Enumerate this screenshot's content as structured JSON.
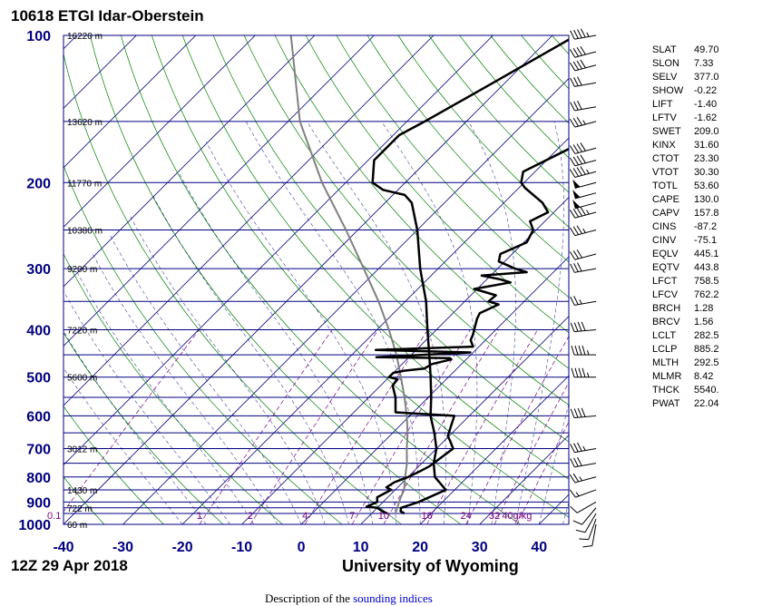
{
  "title": "10618 ETGI Idar-Oberstein",
  "datetime": "12Z 29 Apr 2018",
  "source": "University of Wyoming",
  "footer": {
    "prefix": "Description of the ",
    "link": "sounding indices"
  },
  "colors": {
    "isobar": "#000080",
    "isotherm": "#000080",
    "dry_adiabat": "#008000",
    "moist_adiabat": "#000080",
    "mixing_ratio": "#800080",
    "profile": "#000000",
    "parcel": "#808080",
    "frame": "#000080"
  },
  "chart_data": {
    "type": "skew-t",
    "xlim": [
      -40,
      45
    ],
    "ylim": [
      1000,
      100
    ],
    "y_scale": "log",
    "isotherm_skew": "45-degree",
    "x_ticks": [
      -40,
      -30,
      -20,
      -10,
      0,
      10,
      20,
      30,
      40
    ],
    "pressure_labels": [
      100,
      200,
      300,
      400,
      500,
      600,
      700,
      800,
      900,
      1000
    ],
    "isobars": [
      100,
      150,
      200,
      250,
      300,
      350,
      400,
      450,
      500,
      550,
      600,
      650,
      700,
      750,
      800,
      850,
      900,
      925,
      950,
      1000
    ],
    "height_labels": [
      {
        "p": 100,
        "text": "16220 m"
      },
      {
        "p": 150,
        "text": "13620 m"
      },
      {
        "p": 200,
        "text": "11770 m"
      },
      {
        "p": 250,
        "text": "10380 m"
      },
      {
        "p": 300,
        "text": "9200 m"
      },
      {
        "p": 400,
        "text": "7220 m"
      },
      {
        "p": 500,
        "text": "5600 m"
      },
      {
        "p": 700,
        "text": "3012 m"
      },
      {
        "p": 850,
        "text": "1430 m"
      },
      {
        "p": 925,
        "text": "722 m"
      },
      {
        "p": 1000,
        "text": "60 m"
      }
    ],
    "mixing_ratio_labels": [
      "0.1",
      "1",
      "2",
      "4",
      "7",
      "10",
      "16",
      "24",
      "32",
      "40g/kg"
    ],
    "mixing_ratio_values": [
      0.1,
      1,
      2,
      4,
      7,
      10,
      16,
      24,
      32,
      40
    ],
    "dew_point": [
      [
        950,
        12.7
      ],
      [
        940,
        11.4
      ],
      [
        925,
        10.0
      ],
      [
        920,
        8.0
      ],
      [
        900,
        9.0
      ],
      [
        880,
        8.2
      ],
      [
        850,
        9.3
      ],
      [
        840,
        8.1
      ],
      [
        820,
        8.6
      ],
      [
        800,
        10.0
      ],
      [
        780,
        11.0
      ],
      [
        760,
        11.8
      ],
      [
        700,
        12.8
      ],
      [
        675,
        11.0
      ],
      [
        660,
        9.8
      ],
      [
        600,
        7.5
      ],
      [
        590,
        -3.0
      ],
      [
        550,
        -5.5
      ],
      [
        520,
        -8.0
      ],
      [
        505,
        -8.2
      ],
      [
        500,
        -10.0
      ],
      [
        490,
        -10.0
      ],
      [
        485,
        -8.5
      ],
      [
        480,
        -5.5
      ],
      [
        470,
        -5.0
      ],
      [
        460,
        -2.5
      ],
      [
        457,
        -3.0
      ],
      [
        455,
        -15.5
      ],
      [
        445,
        -0.5
      ],
      [
        440,
        -16.8
      ],
      [
        433,
        -1.0
      ],
      [
        420,
        -2.5
      ],
      [
        410,
        -3.0
      ],
      [
        380,
        -5.0
      ],
      [
        370,
        -5.5
      ],
      [
        355,
        -3.8
      ],
      [
        350,
        -6.0
      ],
      [
        340,
        -5.8
      ],
      [
        330,
        -10.5
      ],
      [
        320,
        -5.5
      ],
      [
        315,
        -8.0
      ],
      [
        310,
        -11.5
      ],
      [
        305,
        -4.5
      ],
      [
        300,
        -7.0
      ],
      [
        290,
        -11.0
      ],
      [
        280,
        -12.0
      ],
      [
        265,
        -9.5
      ],
      [
        250,
        -10.5
      ],
      [
        240,
        -12.5
      ],
      [
        230,
        -11.0
      ],
      [
        220,
        -13.5
      ],
      [
        205,
        -19.0
      ],
      [
        200,
        -20.5
      ],
      [
        190,
        -22.0
      ],
      [
        170,
        -18.0
      ],
      [
        150,
        -13.5
      ],
      [
        125,
        -4.0
      ],
      [
        100,
        4.0
      ]
    ],
    "temperature": [
      [
        950,
        15.5
      ],
      [
        940,
        14.5
      ],
      [
        925,
        14.0
      ],
      [
        900,
        16.0
      ],
      [
        850,
        18.5
      ],
      [
        800,
        14.5
      ],
      [
        750,
        12.0
      ],
      [
        700,
        10.0
      ],
      [
        650,
        7.0
      ],
      [
        600,
        3.5
      ],
      [
        550,
        0.5
      ],
      [
        500,
        -3.0
      ],
      [
        450,
        -7.0
      ],
      [
        400,
        -11.5
      ],
      [
        350,
        -16.5
      ],
      [
        300,
        -23.0
      ],
      [
        250,
        -30.0
      ],
      [
        220,
        -35.5
      ],
      [
        212,
        -38.0
      ],
      [
        207,
        -42.5
      ],
      [
        200,
        -45.5
      ],
      [
        180,
        -49.0
      ],
      [
        160,
        -49.0
      ],
      [
        150,
        -47.0
      ],
      [
        125,
        -42.0
      ],
      [
        100,
        -36.0
      ]
    ],
    "parcel_path": [
      [
        950,
        14.0
      ],
      [
        885,
        12.3
      ],
      [
        850,
        11.5
      ],
      [
        800,
        9.5
      ],
      [
        750,
        7.5
      ],
      [
        700,
        5.0
      ],
      [
        650,
        2.5
      ],
      [
        600,
        -0.5
      ],
      [
        550,
        -4.0
      ],
      [
        500,
        -8.0
      ],
      [
        450,
        -12.5
      ],
      [
        400,
        -18.0
      ],
      [
        350,
        -24.5
      ],
      [
        300,
        -32.5
      ],
      [
        250,
        -42.0
      ],
      [
        200,
        -54.0
      ],
      [
        150,
        -68.0
      ],
      [
        100,
        -84.0
      ]
    ],
    "wind_barbs": [
      {
        "p": 1000,
        "dir": 190,
        "spd": 10
      },
      {
        "p": 975,
        "dir": 200,
        "spd": 10
      },
      {
        "p": 950,
        "dir": 210,
        "spd": 10
      },
      {
        "p": 925,
        "dir": 220,
        "spd": 10
      },
      {
        "p": 900,
        "dir": 240,
        "spd": 10
      },
      {
        "p": 850,
        "dir": 250,
        "spd": 15
      },
      {
        "p": 800,
        "dir": 255,
        "spd": 25
      },
      {
        "p": 750,
        "dir": 260,
        "spd": 30
      },
      {
        "p": 700,
        "dir": 260,
        "spd": 35
      },
      {
        "p": 600,
        "dir": 265,
        "spd": 40
      },
      {
        "p": 500,
        "dir": 270,
        "spd": 45
      },
      {
        "p": 450,
        "dir": 270,
        "spd": 45
      },
      {
        "p": 400,
        "dir": 265,
        "spd": 40
      },
      {
        "p": 350,
        "dir": 260,
        "spd": 25
      },
      {
        "p": 300,
        "dir": 260,
        "spd": 30
      },
      {
        "p": 280,
        "dir": 255,
        "spd": 30
      },
      {
        "p": 250,
        "dir": 255,
        "spd": 35
      },
      {
        "p": 230,
        "dir": 255,
        "spd": 45
      },
      {
        "p": 220,
        "dir": 255,
        "spd": 50
      },
      {
        "p": 210,
        "dir": 255,
        "spd": 50
      },
      {
        "p": 200,
        "dir": 255,
        "spd": 50
      },
      {
        "p": 190,
        "dir": 255,
        "spd": 45
      },
      {
        "p": 180,
        "dir": 255,
        "spd": 40
      },
      {
        "p": 170,
        "dir": 255,
        "spd": 40
      },
      {
        "p": 150,
        "dir": 255,
        "spd": 35
      },
      {
        "p": 140,
        "dir": 260,
        "spd": 30
      },
      {
        "p": 125,
        "dir": 260,
        "spd": 30
      },
      {
        "p": 115,
        "dir": 255,
        "spd": 40
      },
      {
        "p": 108,
        "dir": 255,
        "spd": 40
      },
      {
        "p": 100,
        "dir": 260,
        "spd": 45
      }
    ]
  },
  "indices": [
    {
      "key": "SLAT",
      "value": "49.70"
    },
    {
      "key": "SLON",
      "value": "7.33"
    },
    {
      "key": "SELV",
      "value": "377.0"
    },
    {
      "key": "SHOW",
      "value": "-0.22"
    },
    {
      "key": "LIFT",
      "value": "-1.40"
    },
    {
      "key": "LFTV",
      "value": "-1.62"
    },
    {
      "key": "SWET",
      "value": "209.0"
    },
    {
      "key": "KINX",
      "value": "31.60"
    },
    {
      "key": "CTOT",
      "value": "23.30"
    },
    {
      "key": "VTOT",
      "value": "30.30"
    },
    {
      "key": "TOTL",
      "value": "53.60"
    },
    {
      "key": "CAPE",
      "value": "130.0"
    },
    {
      "key": "CAPV",
      "value": "157.8"
    },
    {
      "key": "CINS",
      "value": "-87.2"
    },
    {
      "key": "CINV",
      "value": "-75.1"
    },
    {
      "key": "EQLV",
      "value": "445.1"
    },
    {
      "key": "EQTV",
      "value": "443.8"
    },
    {
      "key": "LFCT",
      "value": "758.5"
    },
    {
      "key": "LFCV",
      "value": "762.2"
    },
    {
      "key": "BRCH",
      "value": "1.28"
    },
    {
      "key": "BRCV",
      "value": "1.56"
    },
    {
      "key": "LCLT",
      "value": "282.5"
    },
    {
      "key": "LCLP",
      "value": "885.2"
    },
    {
      "key": "MLTH",
      "value": "292.5"
    },
    {
      "key": "MLMR",
      "value": "8.42"
    },
    {
      "key": "THCK",
      "value": "5540."
    },
    {
      "key": "PWAT",
      "value": "22.04"
    }
  ]
}
